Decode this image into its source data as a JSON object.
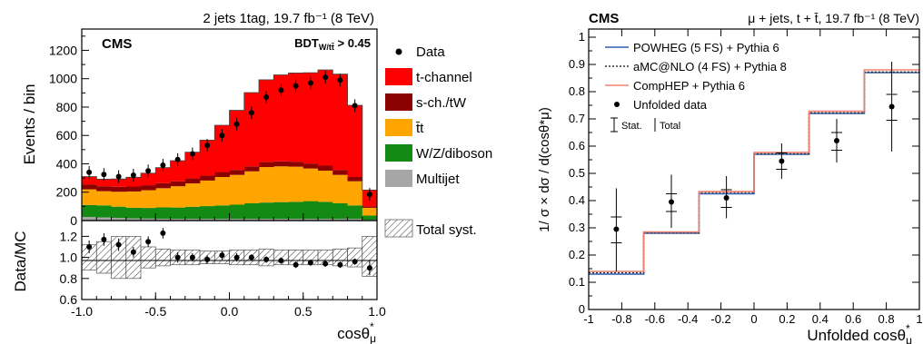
{
  "chart_data": [
    {
      "type": "bar",
      "subtype": "stacked-histogram",
      "header": "2 jets 1tag, 19.7 fb⁻¹ (8 TeV)",
      "cms_label": "CMS",
      "cut_label": "BDT",
      "cut_subscript": "W/tt̄",
      "cut_suffix": " > 0.45",
      "ylabel": "Events / bin",
      "ylim": [
        0,
        1350
      ],
      "yticks": [
        0,
        200,
        400,
        600,
        800,
        1000,
        1200
      ],
      "xlim": [
        -1.0,
        1.0
      ],
      "bin_edges": [
        -1.0,
        -0.9,
        -0.8,
        -0.7,
        -0.6,
        -0.5,
        -0.4,
        -0.3,
        -0.2,
        -0.1,
        0.0,
        0.1,
        0.2,
        0.3,
        0.4,
        0.5,
        0.6,
        0.7,
        0.8,
        0.9,
        1.0
      ],
      "series": [
        {
          "name": "Multijet",
          "color": "#a6a6a6",
          "values": [
            25,
            22,
            18,
            15,
            14,
            13,
            12,
            12,
            12,
            12,
            12,
            12,
            12,
            12,
            12,
            12,
            12,
            12,
            12,
            5
          ]
        },
        {
          "name": "W/Z/diboson",
          "color": "#138a13",
          "values": [
            85,
            85,
            80,
            75,
            75,
            80,
            80,
            85,
            90,
            95,
            100,
            110,
            115,
            118,
            120,
            125,
            120,
            110,
            95,
            30
          ]
        },
        {
          "name": "t̄t",
          "color": "#ffa500",
          "values": [
            110,
            100,
            105,
            115,
            125,
            135,
            150,
            165,
            180,
            200,
            210,
            225,
            250,
            252,
            248,
            230,
            220,
            200,
            170,
            55
          ]
        },
        {
          "name": "s-ch./tW",
          "color": "#8b0000",
          "values": [
            35,
            35,
            35,
            35,
            35,
            35,
            35,
            35,
            35,
            35,
            35,
            35,
            35,
            35,
            35,
            35,
            35,
            35,
            30,
            10
          ]
        },
        {
          "name": "t-channel",
          "color": "#ff0000",
          "values": [
            55,
            50,
            55,
            65,
            85,
            110,
            145,
            185,
            250,
            330,
            420,
            520,
            580,
            610,
            625,
            640,
            675,
            675,
            505,
            115
          ]
        }
      ],
      "data": {
        "name": "Data",
        "x": [
          -0.95,
          -0.85,
          -0.75,
          -0.65,
          -0.55,
          -0.45,
          -0.35,
          -0.25,
          -0.15,
          -0.05,
          0.05,
          0.15,
          0.25,
          0.35,
          0.45,
          0.55,
          0.65,
          0.75,
          0.85,
          0.95
        ],
        "y": [
          340,
          325,
          310,
          320,
          350,
          390,
          430,
          470,
          530,
          600,
          680,
          760,
          870,
          920,
          950,
          970,
          1010,
          990,
          810,
          185
        ]
      },
      "legend": [
        "Data",
        "t-channel",
        "s-ch./tW",
        "t̄t",
        "W/Z/diboson",
        "Multijet",
        "Total syst."
      ],
      "ratio": {
        "ylabel": "Data/MC",
        "ylim": [
          0.6,
          1.35
        ],
        "yticks": [
          "0.6",
          "0.8",
          "1.0",
          "1.2"
        ],
        "xticks": [
          "-1.0",
          "-0.5",
          "0.0",
          "0.5",
          "1.0"
        ],
        "xlabel": "cosθ",
        "xlabel_sub": "μ",
        "xlabel_sup": "*",
        "y": [
          1.1,
          1.17,
          1.12,
          1.05,
          1.15,
          1.23,
          1.0,
          1.0,
          0.98,
          1.02,
          1.0,
          1.0,
          0.98,
          0.97,
          0.93,
          0.95,
          0.94,
          0.93,
          0.96,
          0.9
        ],
        "yerr": [
          0.06,
          0.06,
          0.06,
          0.05,
          0.05,
          0.05,
          0.05,
          0.04,
          0.04,
          0.04,
          0.04,
          0.03,
          0.03,
          0.03,
          0.03,
          0.03,
          0.03,
          0.03,
          0.03,
          0.07
        ],
        "syst_lo": [
          0.88,
          0.85,
          0.8,
          0.8,
          0.9,
          0.92,
          0.93,
          0.93,
          0.94,
          0.94,
          0.93,
          0.93,
          0.92,
          0.93,
          0.93,
          0.93,
          0.93,
          0.92,
          0.91,
          0.82
        ],
        "syst_hi": [
          1.12,
          1.15,
          1.2,
          1.2,
          1.1,
          1.08,
          1.07,
          1.07,
          1.06,
          1.06,
          1.07,
          1.07,
          1.08,
          1.07,
          1.07,
          1.07,
          1.07,
          1.08,
          1.09,
          1.2
        ]
      }
    },
    {
      "type": "line",
      "subtype": "step",
      "cms_label": "CMS",
      "header": "μ + jets, t + t̄, 19.7 fb⁻¹ (8 TeV)",
      "ylabel": "1/ σ × dσ / d(cosθ*μ)",
      "xlabel": "Unfolded cosθ",
      "xlabel_sub": "μ",
      "xlabel_sup": "*",
      "xlim": [
        -1,
        1
      ],
      "ylim": [
        0,
        1.03
      ],
      "xticks": [
        "-1",
        "-0.8",
        "-0.6",
        "-0.4",
        "-0.2",
        "0",
        "0.2",
        "0.4",
        "0.6",
        "0.8",
        "1"
      ],
      "yticks": [
        "0",
        "0.1",
        "0.2",
        "0.3",
        "0.4",
        "0.5",
        "0.6",
        "0.7",
        "0.8",
        "0.9",
        "1"
      ],
      "bin_edges": [
        -1.0,
        -0.667,
        -0.333,
        0.0,
        0.333,
        0.667,
        1.0
      ],
      "series": [
        {
          "name": "POWHEG (5 FS) + Pythia 6",
          "color": "#2f5fb3",
          "style": "solid",
          "values": [
            0.13,
            0.28,
            0.425,
            0.57,
            0.72,
            0.87
          ]
        },
        {
          "name": "aMC@NLO (4 FS) + Pythia 8",
          "color": "#333333",
          "style": "dotted",
          "values": [
            0.135,
            0.282,
            0.43,
            0.572,
            0.722,
            0.872
          ]
        },
        {
          "name": "CompHEP + Pythia 6",
          "color": "#f08070",
          "style": "solid",
          "values": [
            0.14,
            0.285,
            0.433,
            0.577,
            0.728,
            0.88
          ]
        }
      ],
      "data": {
        "name": "Unfolded data",
        "x": [
          -0.833,
          -0.5,
          -0.167,
          0.167,
          0.5,
          0.833
        ],
        "y": [
          0.295,
          0.395,
          0.41,
          0.545,
          0.62,
          0.745
        ],
        "stat_lo": [
          0.245,
          0.36,
          0.375,
          0.515,
          0.585,
          0.695
        ],
        "stat_hi": [
          0.34,
          0.425,
          0.44,
          0.575,
          0.65,
          0.79
        ],
        "tot_lo": [
          0.14,
          0.3,
          0.335,
          0.48,
          0.54,
          0.58
        ],
        "tot_hi": [
          0.445,
          0.495,
          0.49,
          0.61,
          0.7,
          0.91
        ]
      },
      "errorbar_legend": {
        "stat": "Stat.",
        "total": "Total"
      }
    }
  ]
}
